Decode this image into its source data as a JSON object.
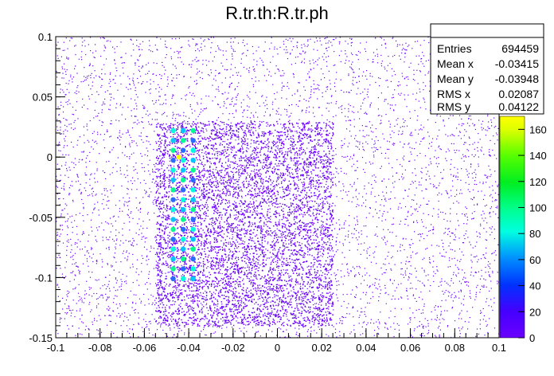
{
  "chart_data": {
    "type": "heatmap",
    "title": "R.tr.th:R.tr.ph",
    "xlabel": "",
    "ylabel": "",
    "xlim": [
      -0.1,
      0.1
    ],
    "ylim": [
      -0.15,
      0.1
    ],
    "x_ticks": [
      "-0.1",
      "-0.08",
      "-0.06",
      "-0.04",
      "-0.02",
      "0",
      "0.02",
      "0.04",
      "0.06",
      "0.08",
      "0.1"
    ],
    "y_ticks": [
      "0.1",
      "0.05",
      "0",
      "-0.05",
      "-0.1",
      "-0.15"
    ],
    "colorbar": {
      "range": [
        0,
        170
      ],
      "ticks": [
        "0",
        "20",
        "40",
        "60",
        "80",
        "100",
        "120",
        "140",
        "160"
      ]
    },
    "stats": {
      "rows": [
        {
          "label": "Entries",
          "value": "694459"
        },
        {
          "label": "Mean x",
          "value": "-0.03415"
        },
        {
          "label": "Mean y",
          "value": "-0.03948"
        },
        {
          "label": "RMS x",
          "value": "0.02087"
        },
        {
          "label": "RMS y",
          "value": "0.04122"
        }
      ]
    },
    "colors": {
      "low": "#6a00ff",
      "mid": "#00ffe0",
      "high": "#ffff00"
    }
  }
}
